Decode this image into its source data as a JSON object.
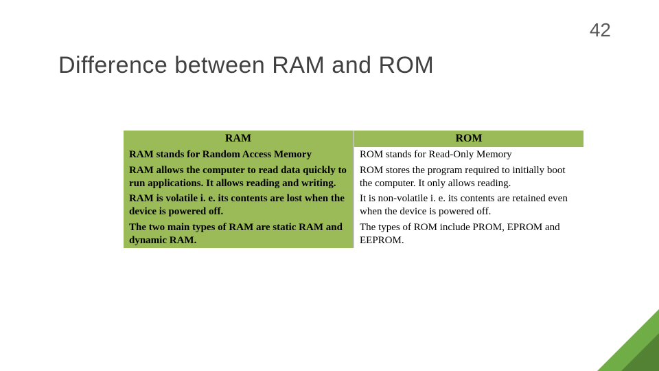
{
  "page_number": "42",
  "title": "Difference  between RAM and ROM",
  "table": {
    "type": "table",
    "header_bg": "#9bbb59",
    "left_bg": "#9bbb59",
    "right_bg": "#ffffff",
    "border_color": "#bfbfbf",
    "font_family": "Georgia",
    "header_fontsize": 16,
    "cell_fontsize": 15,
    "columns": [
      "RAM",
      "ROM"
    ],
    "rows": [
      [
        "RAM stands for Random Access Memory",
        "ROM stands for Read-Only Memory"
      ],
      [
        "RAM allows the computer to read data quickly to run applications. It allows reading and writing.",
        "ROM stores the program required to initially boot the computer. It only allows reading."
      ],
      [
        "RAM is volatile i. e. its contents are lost when the device is powered off.",
        "It is non-volatile i. e. its contents are retained even when the device is powered off."
      ],
      [
        "The two main types of RAM are static RAM and dynamic RAM.",
        "The types of ROM include PROM, EPROM and EEPROM."
      ]
    ]
  },
  "title_color": "#404040",
  "pagenum_color": "#595959",
  "corner_color_outer": "#70ad47",
  "corner_color_inner": "#548235",
  "background_color": "#ffffff"
}
